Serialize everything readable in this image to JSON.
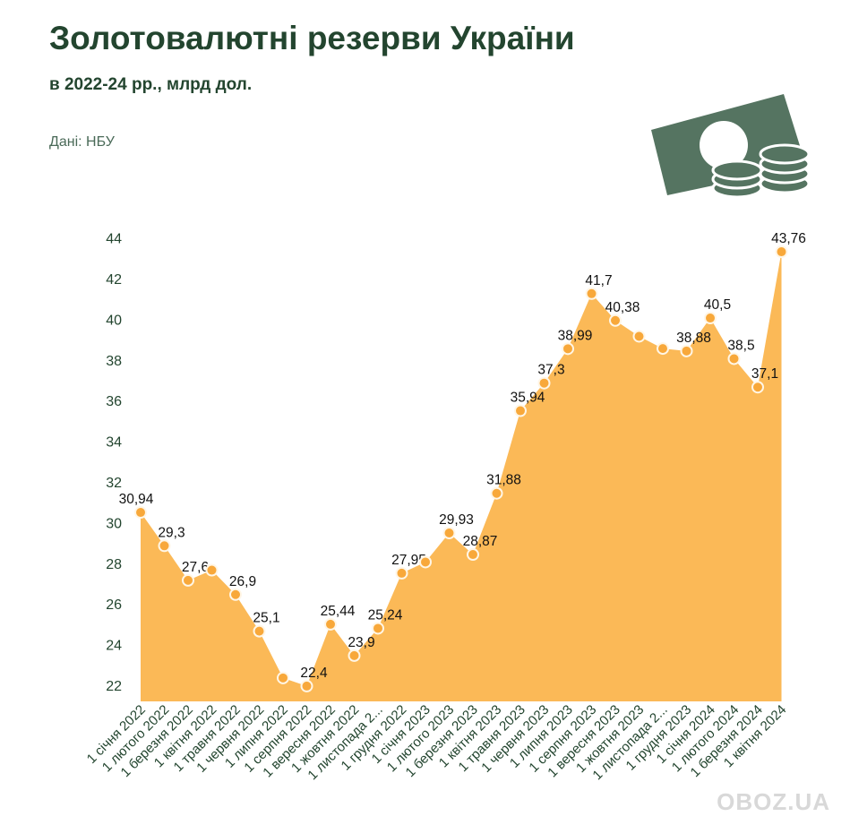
{
  "header": {
    "title": "Золотовалютні резерви України",
    "subtitle": "в 2022-24 рр., млрд дол.",
    "source": "Дані: НБУ"
  },
  "watermark": "OBOZ.UA",
  "icon": "money-coins-icon",
  "colors": {
    "area": "#fbb957",
    "point": "#f8a83a",
    "title": "#23452f",
    "icon": "#557461"
  },
  "chart_data": {
    "type": "area",
    "title": "Золотовалютні резерви України",
    "ylim": [
      22,
      44
    ],
    "yticks": [
      22,
      24,
      26,
      28,
      30,
      32,
      34,
      36,
      38,
      40,
      42,
      44
    ],
    "categories": [
      "1 січня 2022",
      "1 лютого 2022",
      "1 березня 2022",
      "1 квітня 2022",
      "1 травня 2022",
      "1 червня 2022",
      "1 липня 2022",
      "1 серпня 2022",
      "1 вересня 2022",
      "1 жовтня 2022",
      "1 листопада 2...",
      "1 грудня 2022",
      "1 січня 2023",
      "1 лютого 2023",
      "1 березня 2023",
      "1 квітня 2023",
      "1 травня 2023",
      "1 червня 2023",
      "1 липня 2023",
      "1 серпня 2023",
      "1 вересня 2023",
      "1 жовтня 2023",
      "1 листопада 2...",
      "1 грудня 2023",
      "1 січня 2024",
      "1 лютого 2024",
      "1 березня 2024",
      "1 квітня 2024"
    ],
    "values": [
      30.94,
      29.3,
      27.6,
      28.1,
      26.9,
      25.1,
      22.8,
      22.4,
      25.44,
      23.9,
      25.24,
      27.95,
      28.5,
      29.93,
      28.87,
      31.88,
      35.94,
      37.3,
      38.99,
      41.7,
      40.38,
      39.6,
      39.0,
      38.88,
      40.5,
      38.5,
      37.1,
      43.76
    ],
    "labels": [
      "30,94",
      "29,3",
      "27,6",
      "",
      "26,9",
      "25,1",
      "",
      "22,4",
      "25,44",
      "23,9",
      "25,24",
      "27,95",
      "",
      "29,93",
      "28,87",
      "31,88",
      "35,94",
      "37,3",
      "38,99",
      "41,7",
      "40,38",
      "",
      "",
      "38,88",
      "40,5",
      "38,5",
      "37,1",
      "43,76"
    ],
    "grid": false,
    "legend": "none"
  }
}
